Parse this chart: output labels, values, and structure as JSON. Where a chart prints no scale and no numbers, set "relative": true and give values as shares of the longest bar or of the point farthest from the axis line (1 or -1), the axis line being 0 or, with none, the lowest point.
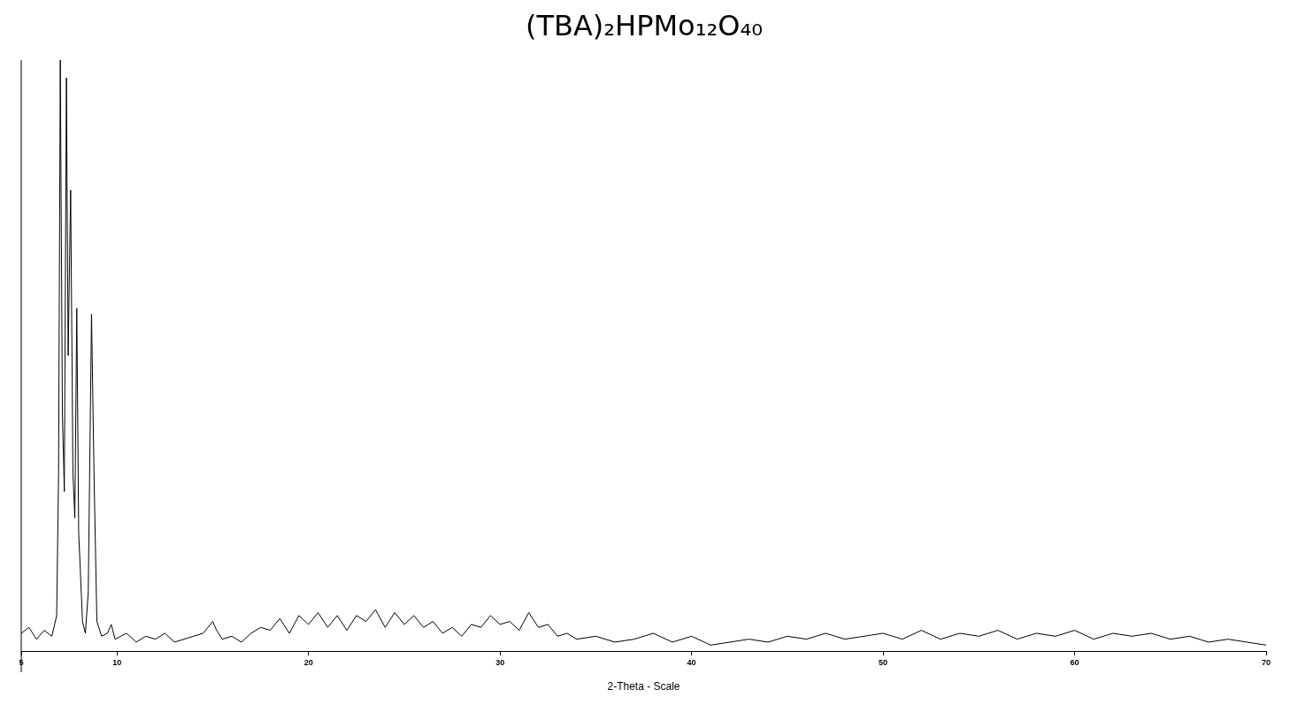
{
  "chart_data": {
    "type": "line",
    "title": "(TBA)₂HPMo₁₂O₄₀",
    "xlabel": "2-Theta - Scale",
    "relative": true,
    "xlim": [
      5,
      70
    ],
    "xticks": [
      5,
      10,
      20,
      30,
      40,
      50,
      60,
      70
    ],
    "marker": "none",
    "series": [
      {
        "color": "#000000",
        "x": [
          5,
          5.4,
          5.8,
          6.2,
          6.6,
          6.85,
          6.95,
          7.04,
          7.15,
          7.25,
          7.36,
          7.45,
          7.58,
          7.7,
          7.8,
          7.9,
          8.0,
          8.2,
          8.35,
          8.5,
          8.67,
          8.8,
          8.95,
          9.2,
          9.5,
          9.7,
          9.9,
          10.5,
          11,
          11.5,
          12,
          12.5,
          13,
          13.5,
          14,
          14.5,
          15,
          15.2,
          15.5,
          16,
          16.5,
          17,
          17.5,
          18,
          18.5,
          19,
          19.5,
          20,
          20.5,
          21,
          21.5,
          22,
          22.5,
          23,
          23.5,
          24,
          24.5,
          25,
          25.5,
          26,
          26.5,
          27,
          27.5,
          28,
          28.5,
          29,
          29.5,
          30,
          30.5,
          31,
          31.5,
          32,
          32.5,
          33,
          33.5,
          34,
          35,
          36,
          37,
          38,
          39,
          40,
          41,
          42,
          43,
          44,
          45,
          46,
          47,
          48,
          49,
          50,
          51,
          52,
          53,
          54,
          55,
          56,
          57,
          58,
          59,
          60,
          61,
          62,
          63,
          64,
          65,
          66,
          67,
          68,
          69,
          70
        ],
        "values": [
          0.03,
          0.04,
          0.02,
          0.035,
          0.025,
          0.06,
          0.3,
          1.0,
          0.4,
          0.27,
          0.97,
          0.5,
          0.78,
          0.3,
          0.225,
          0.58,
          0.2,
          0.05,
          0.03,
          0.1,
          0.57,
          0.3,
          0.05,
          0.025,
          0.03,
          0.045,
          0.02,
          0.03,
          0.015,
          0.025,
          0.02,
          0.03,
          0.015,
          0.02,
          0.025,
          0.03,
          0.05,
          0.035,
          0.02,
          0.025,
          0.015,
          0.03,
          0.04,
          0.035,
          0.055,
          0.03,
          0.06,
          0.045,
          0.065,
          0.04,
          0.06,
          0.035,
          0.06,
          0.05,
          0.07,
          0.04,
          0.065,
          0.045,
          0.06,
          0.04,
          0.05,
          0.03,
          0.04,
          0.025,
          0.045,
          0.04,
          0.06,
          0.045,
          0.05,
          0.035,
          0.065,
          0.04,
          0.045,
          0.025,
          0.03,
          0.02,
          0.025,
          0.015,
          0.02,
          0.03,
          0.015,
          0.025,
          0.01,
          0.015,
          0.02,
          0.015,
          0.025,
          0.02,
          0.03,
          0.02,
          0.025,
          0.03,
          0.02,
          0.035,
          0.02,
          0.03,
          0.025,
          0.035,
          0.02,
          0.03,
          0.025,
          0.035,
          0.02,
          0.03,
          0.025,
          0.03,
          0.02,
          0.025,
          0.015,
          0.02,
          0.015,
          0.01
        ]
      }
    ]
  }
}
